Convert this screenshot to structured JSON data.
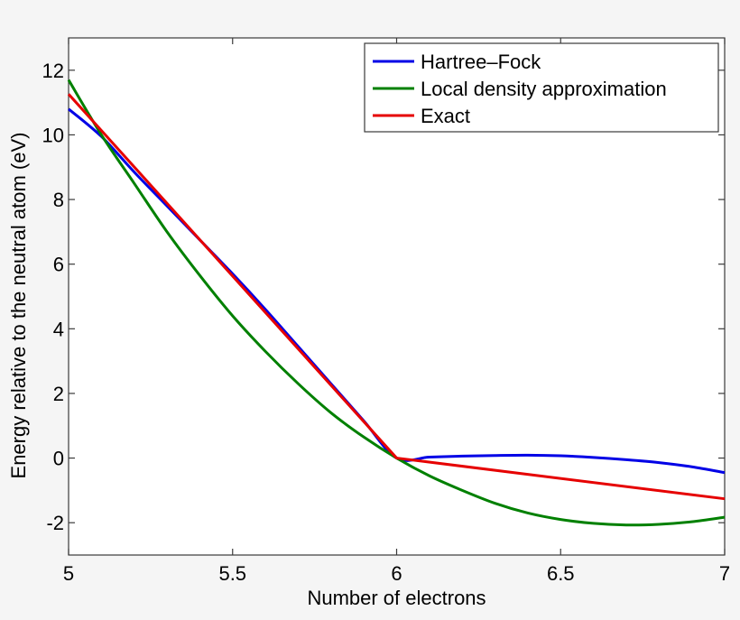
{
  "chart_data": {
    "type": "line",
    "xlabel": "Number of electrons",
    "ylabel": "Energy relative to the neutral atom (eV)",
    "xlim": [
      5,
      7
    ],
    "ylim": [
      -3,
      13
    ],
    "xticks": [
      "5",
      "5.5",
      "6",
      "6.5",
      "7"
    ],
    "xtick_values": [
      5,
      5.5,
      6,
      6.5,
      7
    ],
    "yticks": [
      "-2",
      "0",
      "2",
      "4",
      "6",
      "8",
      "10",
      "12"
    ],
    "ytick_values": [
      -2,
      0,
      2,
      4,
      6,
      8,
      10,
      12
    ],
    "grid": false,
    "legend_position": "top-right",
    "series": [
      {
        "name": "Hartree–Fock",
        "color": "#0000e6",
        "x": [
          5.0,
          5.1,
          5.2,
          5.3,
          5.4,
          5.5,
          5.6,
          5.7,
          5.8,
          5.9,
          6.0,
          6.1,
          6.2,
          6.3,
          6.4,
          6.5,
          6.6,
          6.7,
          6.8,
          6.9,
          7.0
        ],
        "y": [
          10.8,
          9.95,
          8.85,
          7.8,
          6.75,
          5.7,
          4.6,
          3.45,
          2.3,
          1.15,
          0.0,
          0.03,
          0.06,
          0.08,
          0.09,
          0.07,
          0.02,
          -0.05,
          -0.14,
          -0.27,
          -0.45
        ]
      },
      {
        "name": "Local density approximation",
        "color": "#008000",
        "x": [
          5.0,
          5.1,
          5.2,
          5.3,
          5.4,
          5.5,
          5.6,
          5.7,
          5.8,
          5.9,
          6.0,
          6.1,
          6.2,
          6.3,
          6.4,
          6.5,
          6.6,
          6.7,
          6.8,
          6.9,
          7.0
        ],
        "y": [
          11.7,
          10.0,
          8.5,
          7.0,
          5.65,
          4.4,
          3.3,
          2.3,
          1.4,
          0.65,
          0.0,
          -0.55,
          -1.0,
          -1.4,
          -1.7,
          -1.9,
          -2.02,
          -2.07,
          -2.05,
          -1.97,
          -1.83
        ]
      },
      {
        "name": "Exact",
        "color": "#e60000",
        "x": [
          5.0,
          6.0,
          7.0
        ],
        "y": [
          11.26,
          0.0,
          -1.26
        ]
      }
    ]
  }
}
